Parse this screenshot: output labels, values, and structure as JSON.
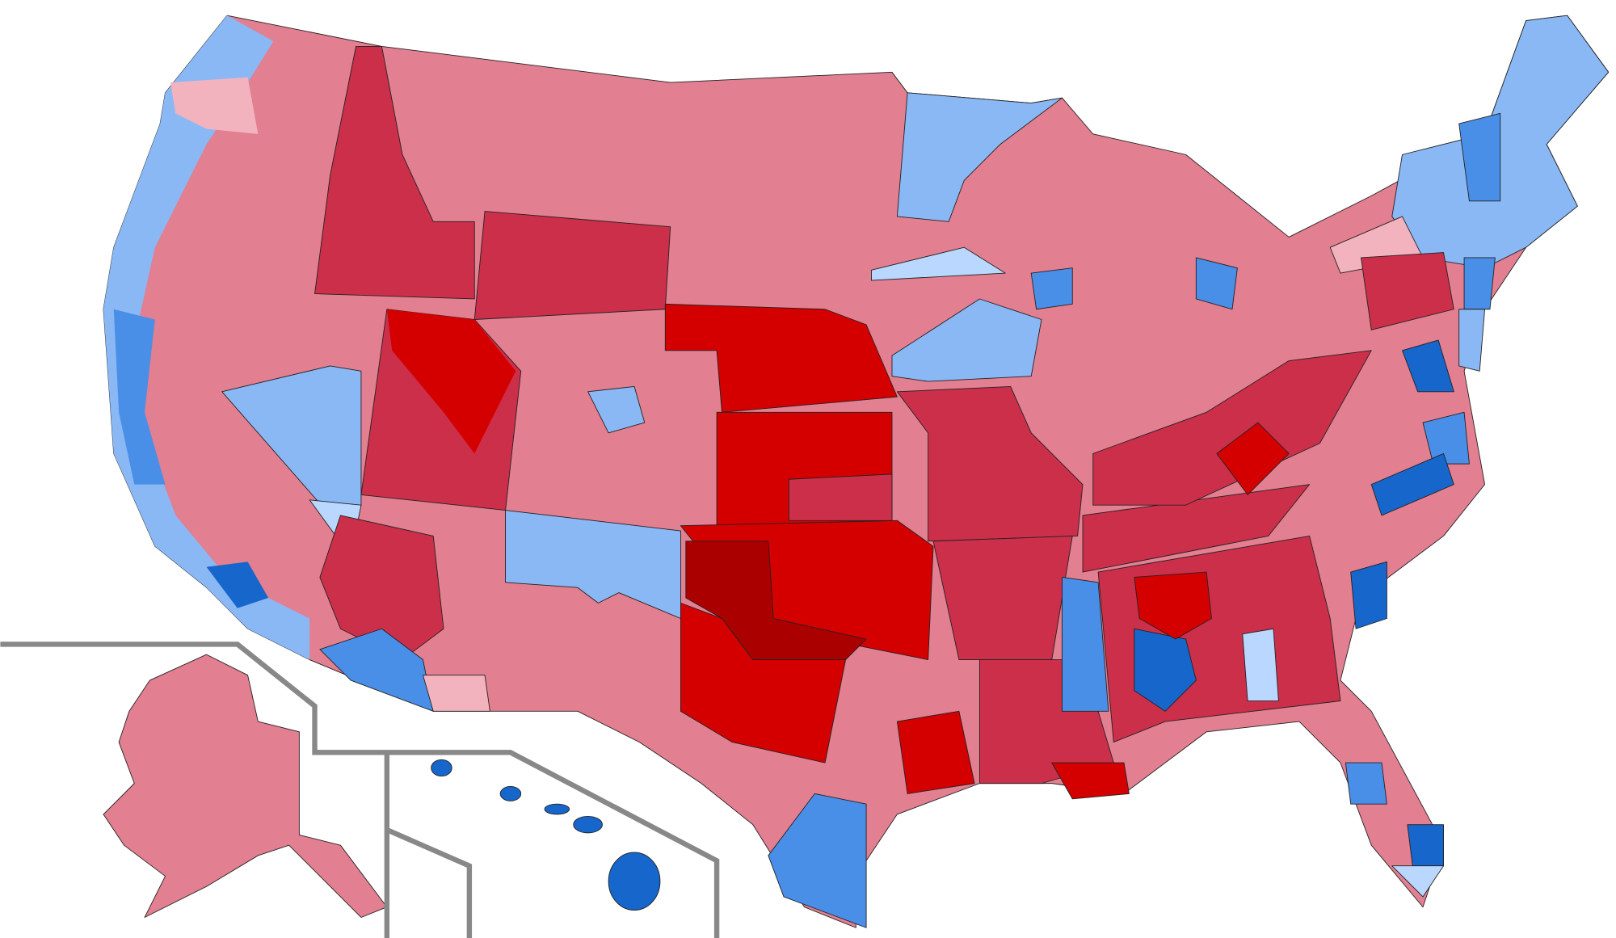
{
  "map": {
    "colors": [
      "#e27f90",
      "#cc2f4a",
      "#d40000",
      "#aa0000",
      "#f2b3be",
      "#8ab8f5",
      "#4a8fe7",
      "#1666cb",
      "#b9d7ff",
      "#888888"
    ]
  }
}
